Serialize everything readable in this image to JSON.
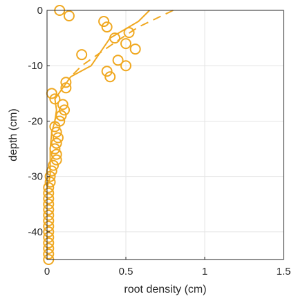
{
  "chart_data": {
    "type": "scatter",
    "title": "",
    "xlabel": "root density (cm)",
    "ylabel": "depth (cm)",
    "xlim": [
      0,
      1.5
    ],
    "ylim": [
      -45,
      0
    ],
    "xticks": [
      "0",
      "0.5",
      "1",
      "1.5"
    ],
    "yticks": [
      "0",
      "-10",
      "-20",
      "-30",
      "-40"
    ],
    "grid": true,
    "legend": "none",
    "color": "#F0A820",
    "series": [
      {
        "type": "scatter",
        "marker": "circle-open",
        "points": [
          [
            0.08,
            0
          ],
          [
            0.14,
            -1
          ],
          [
            0.36,
            -2
          ],
          [
            0.38,
            -3
          ],
          [
            0.52,
            -4
          ],
          [
            0.43,
            -5
          ],
          [
            0.5,
            -6
          ],
          [
            0.56,
            -7
          ],
          [
            0.22,
            -8
          ],
          [
            0.45,
            -9
          ],
          [
            0.5,
            -10
          ],
          [
            0.38,
            -11
          ],
          [
            0.4,
            -12
          ],
          [
            0.12,
            -13
          ],
          [
            0.12,
            -14
          ],
          [
            0.03,
            -15
          ],
          [
            0.05,
            -16
          ],
          [
            0.1,
            -17
          ],
          [
            0.11,
            -18
          ],
          [
            0.09,
            -19
          ],
          [
            0.08,
            -20
          ],
          [
            0.05,
            -21
          ],
          [
            0.06,
            -22
          ],
          [
            0.07,
            -23
          ],
          [
            0.06,
            -24
          ],
          [
            0.05,
            -25
          ],
          [
            0.06,
            -26
          ],
          [
            0.06,
            -27
          ],
          [
            0.04,
            -28
          ],
          [
            0.03,
            -29
          ],
          [
            0.02,
            -30
          ],
          [
            0.02,
            -31
          ],
          [
            0.01,
            -32
          ],
          [
            0.01,
            -33
          ],
          [
            0.01,
            -34
          ],
          [
            0.01,
            -35
          ],
          [
            0.01,
            -36
          ],
          [
            0.01,
            -37
          ],
          [
            0.01,
            -38
          ],
          [
            0.01,
            -39
          ],
          [
            0.01,
            -40
          ],
          [
            0.01,
            -41
          ],
          [
            0.01,
            -42
          ],
          [
            0.01,
            -43
          ],
          [
            0.01,
            -44
          ],
          [
            0.01,
            -45
          ]
        ]
      },
      {
        "type": "line",
        "style": "solid",
        "points": [
          [
            0.65,
            0
          ],
          [
            0.58,
            -2
          ],
          [
            0.4,
            -5
          ],
          [
            0.28,
            -10
          ],
          [
            0.15,
            -12
          ],
          [
            0.1,
            -14
          ],
          [
            0.05,
            -16
          ],
          [
            0.06,
            -18
          ],
          [
            0.05,
            -20
          ],
          [
            0.03,
            -22
          ],
          [
            0.02,
            -25
          ],
          [
            0.02,
            -28
          ],
          [
            0.02,
            -30
          ],
          [
            0.0,
            -32
          ]
        ]
      },
      {
        "type": "line",
        "style": "dashed",
        "points": [
          [
            0.8,
            0
          ],
          [
            0.58,
            -3
          ],
          [
            0.42,
            -6
          ],
          [
            0.22,
            -10
          ],
          [
            0.15,
            -12
          ]
        ]
      }
    ]
  }
}
